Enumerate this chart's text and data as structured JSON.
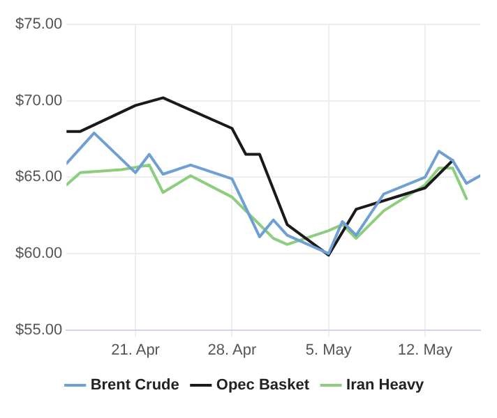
{
  "chart_data": {
    "type": "line",
    "x": [
      "--04-16",
      "--04-17",
      "--04-21",
      "--04-23",
      "--04-28",
      "--04-29",
      "--04-30",
      "--05-02",
      "--05-05",
      "--05-07",
      "--05-12",
      "--05-14"
    ],
    "series": [
      {
        "name": "Brent Crude",
        "color": "#6f9fd3",
        "x": [
          "--04-16",
          "--04-18",
          "--04-21",
          "--04-22",
          "--04-23",
          "--04-25",
          "--04-28",
          "--04-30",
          "--05-01",
          "--05-02",
          "--05-05",
          "--05-06",
          "--05-07",
          "--05-09",
          "--05-12",
          "--05-13",
          "--05-14",
          "--05-15",
          "--05-16"
        ],
        "values": [
          65.9,
          67.9,
          65.3,
          66.5,
          65.2,
          65.8,
          64.9,
          61.1,
          62.2,
          61.2,
          60.0,
          62.1,
          61.2,
          63.9,
          65.0,
          66.7,
          66.1,
          64.6,
          65.1
        ]
      },
      {
        "name": "Opec Basket",
        "color": "#1a1a1a",
        "values": [
          68.0,
          68.0,
          69.7,
          70.2,
          68.2,
          66.5,
          66.5,
          61.9,
          59.9,
          62.9,
          64.3,
          66.1
        ]
      },
      {
        "name": "Iran Heavy",
        "color": "#8dcd7e",
        "x": [
          "--04-16",
          "--04-17",
          "--04-20",
          "--04-22",
          "--04-23",
          "--04-25",
          "--04-28",
          "--05-01",
          "--05-02",
          "--05-05",
          "--05-06",
          "--05-07",
          "--05-09",
          "--05-12",
          "--05-13",
          "--05-14",
          "--05-15"
        ],
        "values": [
          64.5,
          65.3,
          65.5,
          65.8,
          64.0,
          65.1,
          63.7,
          61.0,
          60.6,
          61.5,
          61.9,
          61.0,
          62.8,
          64.5,
          65.6,
          65.6,
          63.6
        ]
      }
    ],
    "xlim": [
      "--04-16",
      "--05-16"
    ],
    "xticks": [
      {
        "value": "--04-21",
        "label": "21. Apr"
      },
      {
        "value": "--04-28",
        "label": "28. Apr"
      },
      {
        "value": "--05-05",
        "label": "5. May"
      },
      {
        "value": "--05-12",
        "label": "12. May"
      }
    ],
    "ylim": [
      55,
      75
    ],
    "yticks": [
      {
        "value": 55,
        "label": "$55.00"
      },
      {
        "value": 60,
        "label": "$60.00"
      },
      {
        "value": 65,
        "label": "$65.00"
      },
      {
        "value": 70,
        "label": "$70.00"
      },
      {
        "value": 75,
        "label": "$75.00"
      }
    ],
    "grid": true,
    "legend": "bottom",
    "marker": "none",
    "line_style": "solid"
  }
}
